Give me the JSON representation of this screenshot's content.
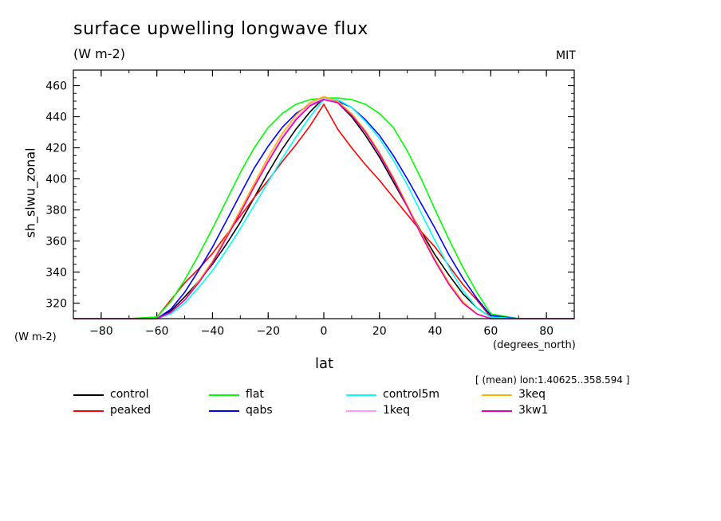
{
  "page": {
    "title": "surface upwelling longwave flux",
    "subtitle": "(W m-2)",
    "source": "MIT",
    "y_unit": "(W m-2)",
    "x_unit": "(degrees_north)",
    "footnote": "[ (mean) lon:1.40625..358.594 ]"
  },
  "chart_data": {
    "type": "line",
    "title": "surface upwelling longwave flux",
    "subtitle": "(W m-2)",
    "xlabel": "lat",
    "ylabel": "sh_slwu_zonal",
    "xlim": [
      -90,
      90
    ],
    "ylim": [
      310,
      470
    ],
    "xticks": [
      -80,
      -60,
      -40,
      -20,
      0,
      20,
      40,
      60,
      80
    ],
    "yticks": [
      320,
      340,
      360,
      380,
      400,
      420,
      440,
      460
    ],
    "x": [
      -90,
      -80,
      -70,
      -60,
      -55,
      -50,
      -45,
      -40,
      -35,
      -30,
      -25,
      -20,
      -15,
      -10,
      -5,
      0,
      5,
      10,
      15,
      20,
      25,
      30,
      35,
      40,
      45,
      50,
      55,
      60,
      70,
      80,
      90
    ],
    "series": [
      {
        "name": "control",
        "color": "#000000",
        "values": [
          310,
          310,
          310,
          310,
          315,
          324,
          334,
          345,
          358,
          372,
          388,
          404,
          419,
          432,
          443,
          452,
          449,
          440,
          428,
          414,
          398,
          382,
          366,
          351,
          338,
          326,
          317,
          311,
          310,
          310,
          310
        ]
      },
      {
        "name": "peaked",
        "color": "#ff0000",
        "values": [
          310,
          310,
          310,
          311,
          322,
          333,
          342,
          352,
          364,
          376,
          388,
          399,
          411,
          422,
          434,
          448,
          432,
          420,
          409,
          399,
          388,
          377,
          366,
          356,
          344,
          332,
          322,
          311,
          310,
          310,
          310
        ]
      },
      {
        "name": "flat",
        "color": "#00ff00",
        "values": [
          310,
          310,
          310,
          311,
          321,
          335,
          351,
          368,
          386,
          404,
          420,
          433,
          442,
          448,
          451,
          452,
          452,
          451,
          448,
          442,
          433,
          418,
          400,
          380,
          361,
          343,
          327,
          313,
          310,
          310,
          310
        ]
      },
      {
        "name": "qabs",
        "color": "#0000ff",
        "values": [
          310,
          310,
          310,
          310,
          316,
          327,
          341,
          356,
          373,
          390,
          407,
          421,
          433,
          442,
          448,
          451,
          450,
          446,
          438,
          428,
          415,
          400,
          384,
          368,
          351,
          336,
          323,
          312,
          310,
          310,
          310
        ]
      },
      {
        "name": "control5m",
        "color": "#00ffff",
        "values": [
          310,
          310,
          310,
          310,
          313,
          320,
          330,
          341,
          354,
          368,
          383,
          398,
          413,
          427,
          440,
          451,
          451,
          446,
          437,
          426,
          412,
          396,
          378,
          360,
          343,
          328,
          317,
          311,
          310,
          310,
          310
        ]
      },
      {
        "name": "1keq",
        "color": "#ff99ff",
        "values": [
          310,
          310,
          310,
          310,
          314,
          322,
          333,
          346,
          362,
          379,
          396,
          412,
          427,
          439,
          448,
          452,
          449,
          441,
          430,
          416,
          400,
          382,
          364,
          347,
          332,
          320,
          313,
          310,
          310,
          310,
          310
        ]
      },
      {
        "name": "3keq",
        "color": "#ffb300",
        "values": [
          310,
          310,
          310,
          310,
          314,
          322,
          334,
          347,
          363,
          380,
          397,
          414,
          429,
          441,
          449,
          453,
          450,
          442,
          431,
          417,
          401,
          383,
          365,
          348,
          333,
          321,
          313,
          310,
          310,
          310,
          310
        ]
      },
      {
        "name": "3kw1",
        "color": "#e600b8",
        "values": [
          310,
          310,
          310,
          310,
          314,
          322,
          333,
          346,
          362,
          378,
          395,
          411,
          426,
          438,
          447,
          451,
          449,
          441,
          430,
          416,
          400,
          382,
          364,
          347,
          332,
          320,
          313,
          310,
          310,
          310,
          310
        ]
      }
    ],
    "legend": {
      "placement": "bottom",
      "entries": [
        "control",
        "flat",
        "control5m",
        "3keq",
        "peaked",
        "qabs",
        "1keq",
        "3kw1"
      ]
    }
  }
}
